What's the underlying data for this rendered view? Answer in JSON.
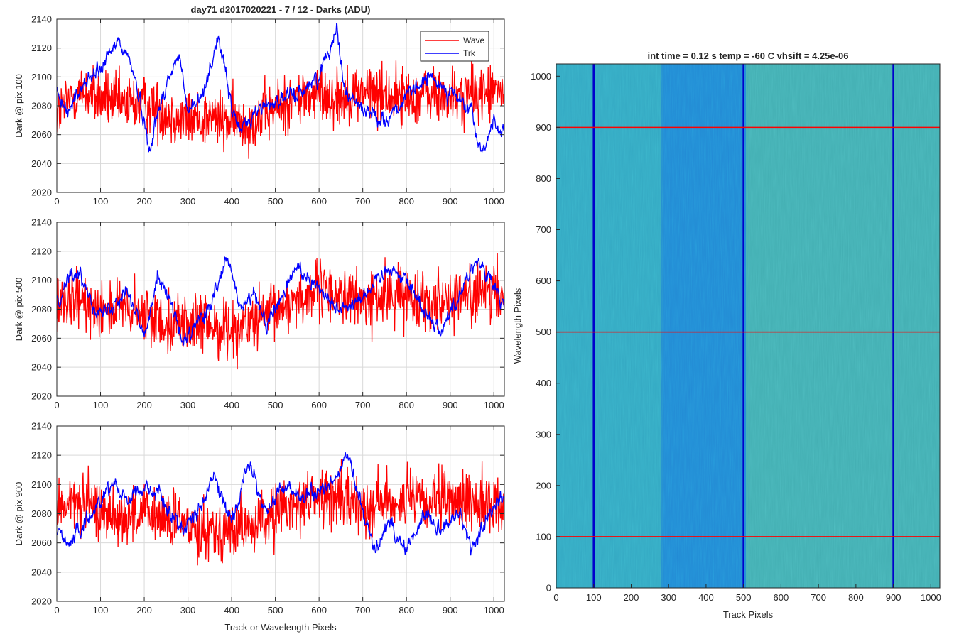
{
  "figure": {
    "title_left": "day71 d2017020221 - 7 / 12 - Darks (ADU)",
    "title_right": "int time = 0.12 s    temp = -60 C    vhsift = 4.25e-06"
  },
  "legend": {
    "position": "top-right",
    "entries": [
      {
        "label": "Wave",
        "color": "#ff0000"
      },
      {
        "label": "Trk",
        "color": "#0000ff"
      }
    ]
  },
  "chart_data": [
    {
      "type": "line",
      "title": "day71 d2017020221 - 7 / 12 - Darks (ADU)",
      "xlabel": "",
      "ylabel": "Dark @ pix 100",
      "xlim": [
        0,
        1024
      ],
      "ylim": [
        2020,
        2140
      ],
      "xticks": [
        0,
        100,
        200,
        300,
        400,
        500,
        600,
        700,
        800,
        900,
        1000
      ],
      "yticks": [
        2020,
        2040,
        2060,
        2080,
        2100,
        2120,
        2140
      ],
      "grid": true,
      "series": [
        {
          "name": "Wave",
          "color": "#ff0000",
          "mean": 2080,
          "min": 2030,
          "max": 2130,
          "x": [
            0,
            50,
            100,
            150,
            200,
            250,
            300,
            350,
            400,
            450,
            500,
            550,
            600,
            650,
            700,
            750,
            800,
            850,
            900,
            950,
            1024
          ],
          "y": [
            2075,
            2090,
            2085,
            2080,
            2082,
            2075,
            2070,
            2072,
            2068,
            2070,
            2078,
            2085,
            2088,
            2086,
            2090,
            2088,
            2086,
            2088,
            2085,
            2088,
            2090
          ]
        },
        {
          "name": "Trk",
          "color": "#0000ff",
          "mean": 2085,
          "min": 2040,
          "max": 2137,
          "x": [
            0,
            30,
            60,
            100,
            140,
            170,
            200,
            210,
            250,
            280,
            300,
            330,
            370,
            400,
            420,
            460,
            500,
            550,
            600,
            640,
            660,
            700,
            750,
            800,
            850,
            900,
            950,
            970,
            1000,
            1024
          ],
          "y": [
            2085,
            2078,
            2095,
            2105,
            2125,
            2110,
            2070,
            2050,
            2095,
            2115,
            2075,
            2085,
            2128,
            2078,
            2063,
            2078,
            2083,
            2088,
            2100,
            2135,
            2090,
            2078,
            2070,
            2085,
            2100,
            2090,
            2075,
            2045,
            2070,
            2060
          ]
        }
      ]
    },
    {
      "type": "line",
      "title": "",
      "xlabel": "",
      "ylabel": "Dark @ pix 500",
      "xlim": [
        0,
        1024
      ],
      "ylim": [
        2020,
        2140
      ],
      "xticks": [
        0,
        100,
        200,
        300,
        400,
        500,
        600,
        700,
        800,
        900,
        1000
      ],
      "yticks": [
        2020,
        2040,
        2060,
        2080,
        2100,
        2120,
        2140
      ],
      "grid": true,
      "series": [
        {
          "name": "Wave",
          "color": "#ff0000",
          "mean": 2078,
          "min": 2033,
          "max": 2135,
          "x": [
            0,
            50,
            100,
            150,
            200,
            250,
            300,
            350,
            400,
            450,
            500,
            550,
            600,
            650,
            700,
            750,
            800,
            850,
            900,
            950,
            1024
          ],
          "y": [
            2080,
            2085,
            2082,
            2080,
            2075,
            2072,
            2070,
            2068,
            2066,
            2070,
            2078,
            2088,
            2092,
            2090,
            2085,
            2088,
            2090,
            2086,
            2088,
            2090,
            2090
          ]
        },
        {
          "name": "Trk",
          "color": "#0000ff",
          "mean": 2085,
          "min": 2045,
          "max": 2122,
          "x": [
            0,
            30,
            60,
            100,
            130,
            160,
            200,
            230,
            260,
            290,
            320,
            350,
            390,
            420,
            450,
            480,
            510,
            550,
            600,
            640,
            680,
            720,
            760,
            800,
            840,
            880,
            920,
            960,
            1000,
            1024
          ],
          "y": [
            2085,
            2105,
            2100,
            2075,
            2085,
            2095,
            2060,
            2105,
            2085,
            2055,
            2070,
            2080,
            2115,
            2080,
            2090,
            2070,
            2085,
            2110,
            2095,
            2080,
            2085,
            2095,
            2110,
            2100,
            2080,
            2065,
            2090,
            2115,
            2095,
            2080
          ]
        }
      ]
    },
    {
      "type": "line",
      "title": "",
      "xlabel": "Track or Wavelength Pixels",
      "ylabel": "Dark @ pix 900",
      "xlim": [
        0,
        1024
      ],
      "ylim": [
        2020,
        2140
      ],
      "xticks": [
        0,
        100,
        200,
        300,
        400,
        500,
        600,
        700,
        800,
        900,
        1000
      ],
      "yticks": [
        2020,
        2040,
        2060,
        2080,
        2100,
        2120,
        2140
      ],
      "grid": true,
      "series": [
        {
          "name": "Wave",
          "color": "#ff0000",
          "mean": 2082,
          "min": 2035,
          "max": 2130,
          "x": [
            0,
            50,
            100,
            150,
            200,
            250,
            300,
            350,
            400,
            450,
            500,
            550,
            600,
            650,
            700,
            750,
            800,
            850,
            900,
            950,
            1024
          ],
          "y": [
            2085,
            2088,
            2082,
            2078,
            2080,
            2076,
            2072,
            2070,
            2068,
            2072,
            2080,
            2088,
            2092,
            2090,
            2086,
            2088,
            2090,
            2086,
            2090,
            2088,
            2085
          ]
        },
        {
          "name": "Trk",
          "color": "#0000ff",
          "mean": 2080,
          "min": 2030,
          "max": 2125,
          "x": [
            0,
            30,
            60,
            100,
            130,
            160,
            200,
            230,
            260,
            290,
            320,
            360,
            400,
            440,
            480,
            520,
            560,
            600,
            640,
            665,
            700,
            730,
            760,
            800,
            840,
            880,
            920,
            950,
            980,
            1024
          ],
          "y": [
            2070,
            2060,
            2070,
            2090,
            2102,
            2090,
            2098,
            2095,
            2080,
            2070,
            2080,
            2105,
            2075,
            2115,
            2080,
            2100,
            2090,
            2095,
            2105,
            2120,
            2080,
            2055,
            2075,
            2055,
            2080,
            2070,
            2080,
            2055,
            2075,
            2095
          ]
        }
      ]
    },
    {
      "type": "heatmap",
      "title": "int time = 0.12 s    temp = -60 C    vhsift = 4.25e-06",
      "xlabel": "Track Pixels",
      "ylabel": "Wavelength Pixels",
      "xlim": [
        0,
        1024
      ],
      "ylim": [
        0,
        1024
      ],
      "xticks": [
        0,
        100,
        200,
        300,
        400,
        500,
        600,
        700,
        800,
        900,
        1000
      ],
      "yticks": [
        0,
        100,
        200,
        300,
        400,
        500,
        600,
        700,
        800,
        900,
        1000
      ],
      "colormap": "parula",
      "color_low": "#1a7fd6",
      "color_high": "#b5c94a",
      "marker_columns": [
        100,
        500,
        900
      ],
      "marker_column_color": "#0000cc",
      "marker_rows": [
        100,
        500,
        900
      ],
      "marker_row_color": "#ff0000"
    }
  ]
}
